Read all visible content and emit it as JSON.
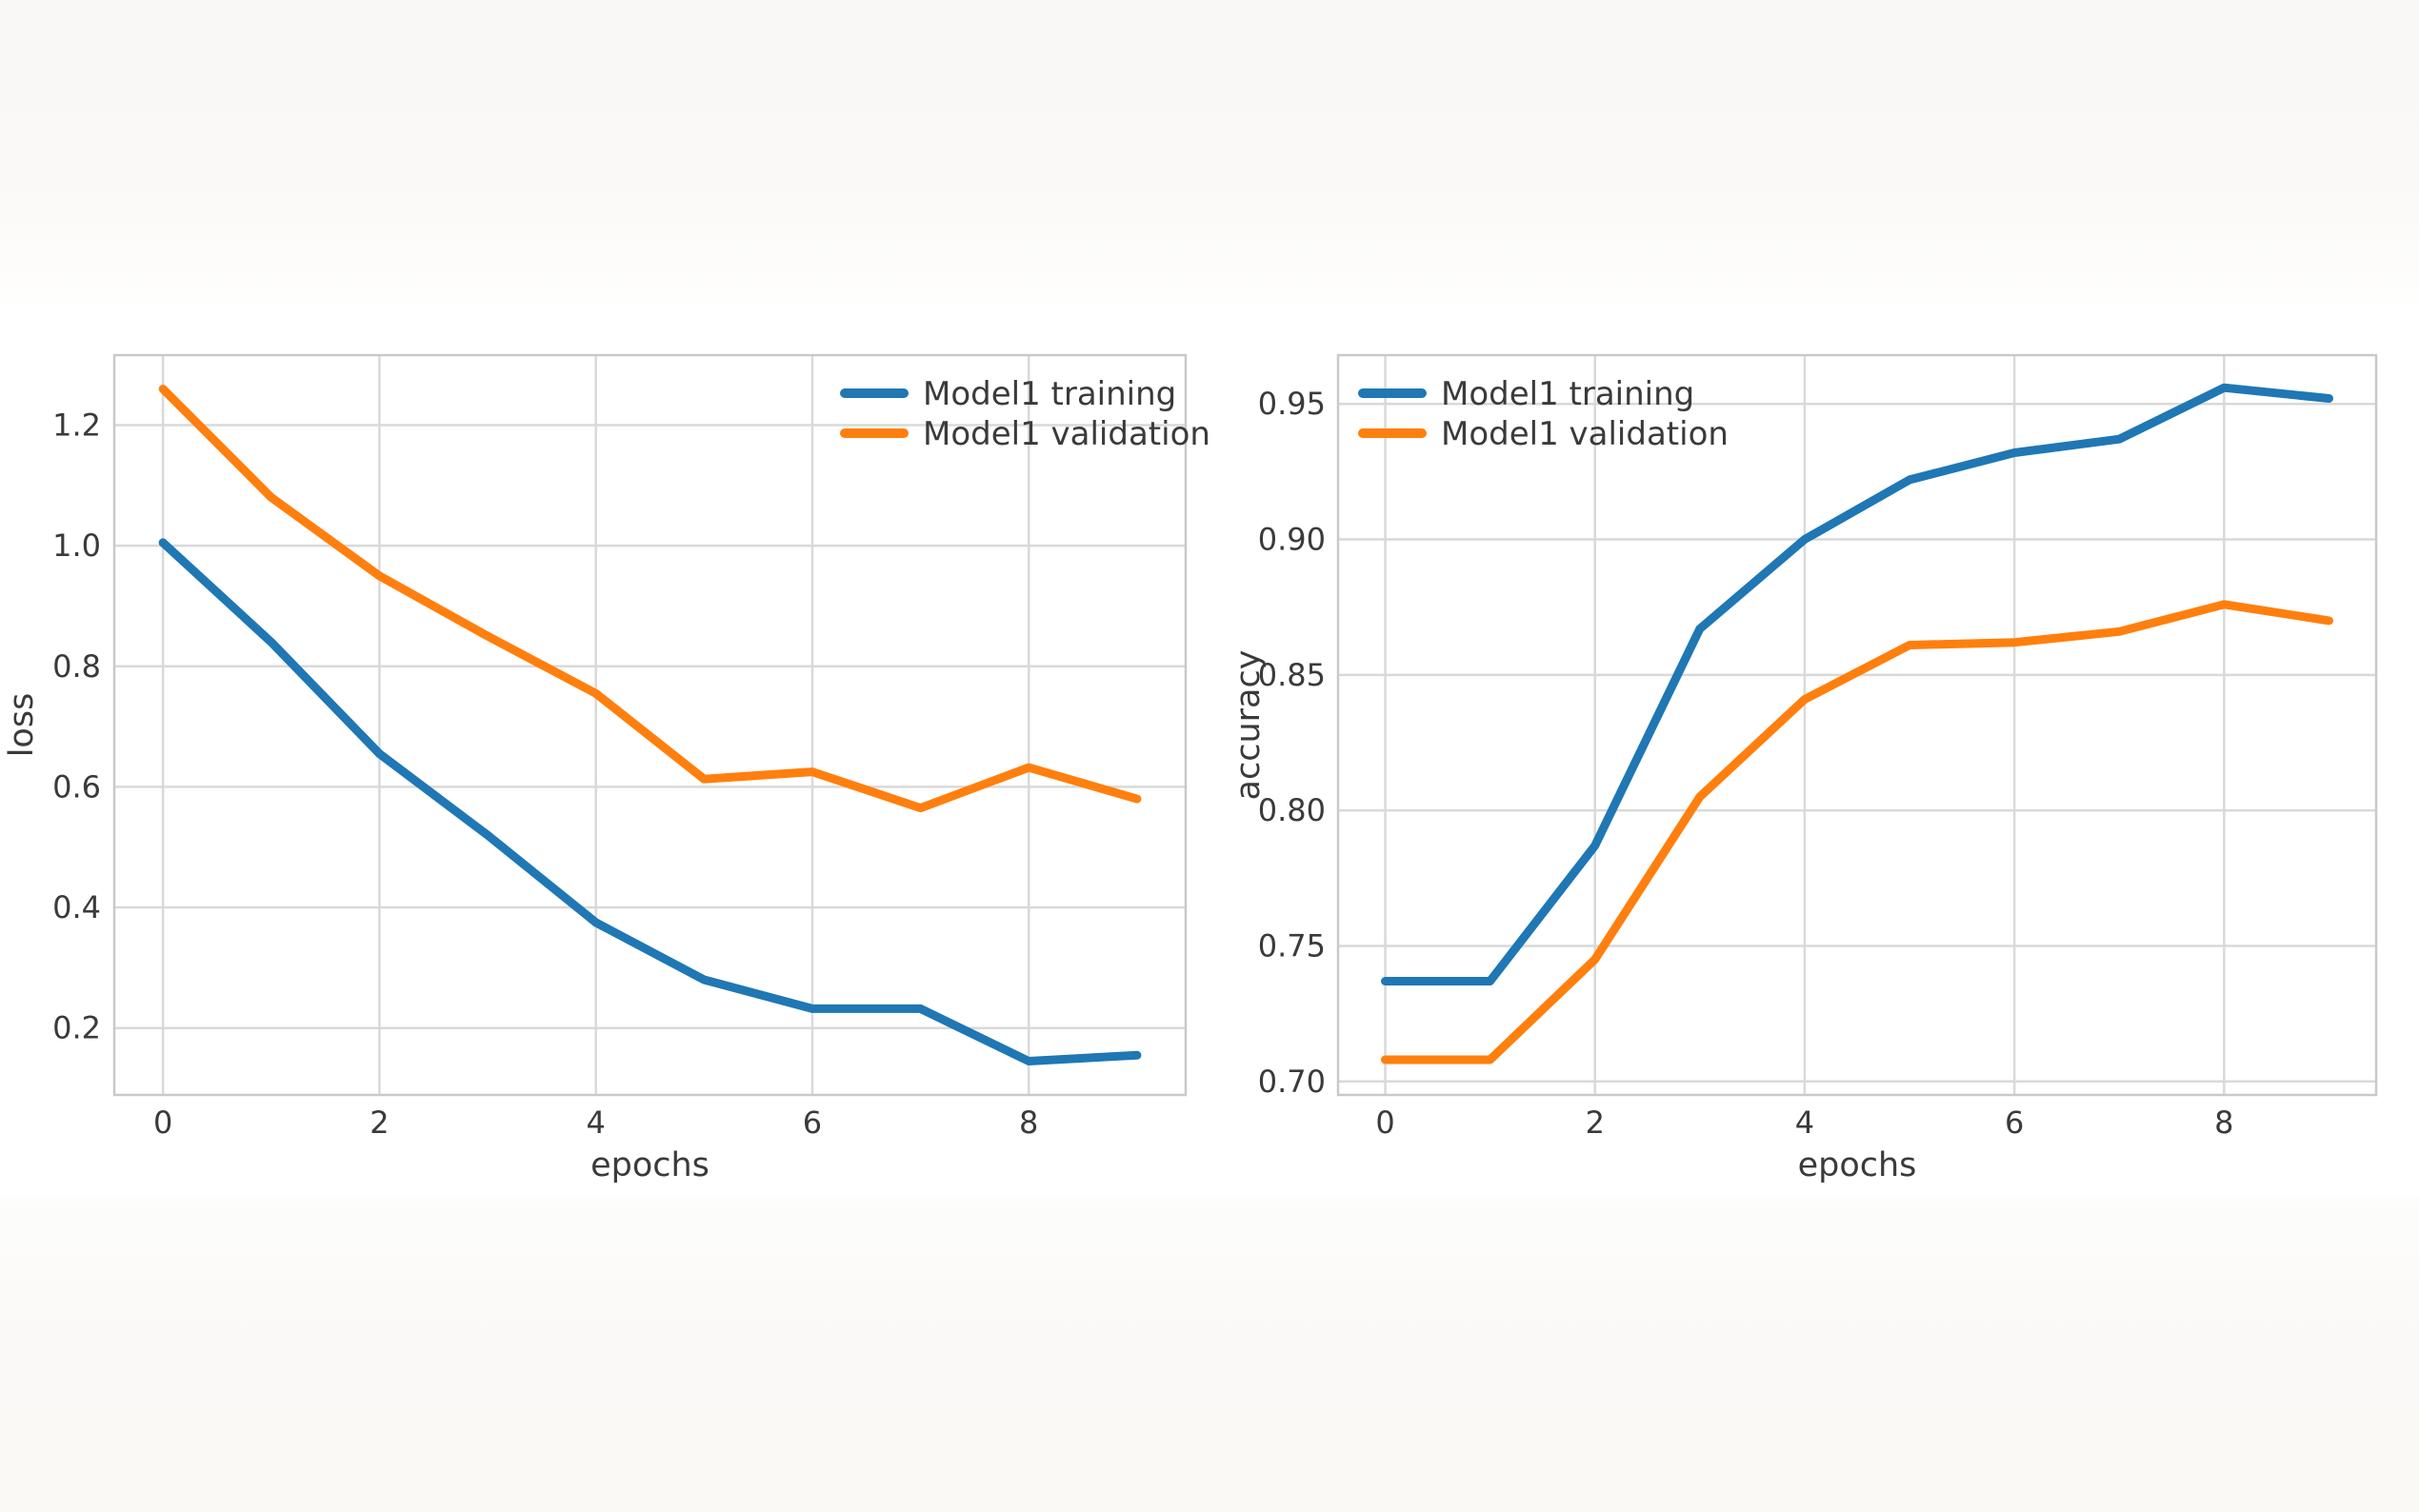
{
  "page": {
    "background_top": "#faf8f6",
    "background_bottom": "#faf9f6",
    "surface": "#ffffff"
  },
  "styles": {
    "accent_blue": "#1f77b4",
    "accent_orange": "#ff7f0e",
    "grid_color": "#d9d9d9",
    "spine_color": "#c9c9c9",
    "text_color": "#3a3a3a"
  },
  "chart_data": [
    {
      "type": "line",
      "name": "loss-chart",
      "title": "",
      "xlabel": "epochs",
      "ylabel": "loss",
      "x": [
        0,
        1,
        2,
        3,
        4,
        5,
        6,
        7,
        8,
        9
      ],
      "series": [
        {
          "name": "Model1 training",
          "color": "#1f77b4",
          "values": [
            1.005,
            0.84,
            0.655,
            0.52,
            0.375,
            0.28,
            0.232,
            0.232,
            0.145,
            0.155
          ]
        },
        {
          "name": "Model1 validation",
          "color": "#ff7f0e",
          "values": [
            1.26,
            1.08,
            0.95,
            0.85,
            0.755,
            0.613,
            0.625,
            0.565,
            0.632,
            0.58
          ]
        }
      ],
      "xlim": [
        -0.45,
        9.45
      ],
      "ylim": [
        0.089,
        1.316
      ],
      "xticks": [
        0,
        2,
        4,
        6,
        8
      ],
      "xtick_labels": [
        "0",
        "2",
        "4",
        "6",
        "8"
      ],
      "yticks": [
        0.2,
        0.4,
        0.6,
        0.8,
        1.0,
        1.2
      ],
      "ytick_labels": [
        "0.2",
        "0.4",
        "0.6",
        "0.8",
        "1.0",
        "1.2"
      ],
      "grid": true,
      "legend_position": "top-right",
      "legend": [
        "Model1 training",
        "Model1 validation"
      ]
    },
    {
      "type": "line",
      "name": "accuracy-chart",
      "title": "",
      "xlabel": "epochs",
      "ylabel": "accuracy",
      "x": [
        0,
        1,
        2,
        3,
        4,
        5,
        6,
        7,
        8,
        9
      ],
      "series": [
        {
          "name": "Model1 training",
          "color": "#1f77b4",
          "values": [
            0.737,
            0.737,
            0.787,
            0.867,
            0.9,
            0.922,
            0.932,
            0.937,
            0.956,
            0.952
          ]
        },
        {
          "name": "Model1 validation",
          "color": "#ff7f0e",
          "values": [
            0.708,
            0.708,
            0.745,
            0.805,
            0.841,
            0.861,
            0.862,
            0.866,
            0.876,
            0.87
          ]
        }
      ],
      "xlim": [
        -0.45,
        9.45
      ],
      "ylim": [
        0.695,
        0.968
      ],
      "xticks": [
        0,
        2,
        4,
        6,
        8
      ],
      "xtick_labels": [
        "0",
        "2",
        "4",
        "6",
        "8"
      ],
      "yticks": [
        0.7,
        0.75,
        0.8,
        0.85,
        0.9,
        0.95
      ],
      "ytick_labels": [
        "0.70",
        "0.75",
        "0.80",
        "0.85",
        "0.90",
        "0.95"
      ],
      "grid": true,
      "legend_position": "top-left",
      "legend": [
        "Model1 training",
        "Model1 validation"
      ]
    }
  ]
}
